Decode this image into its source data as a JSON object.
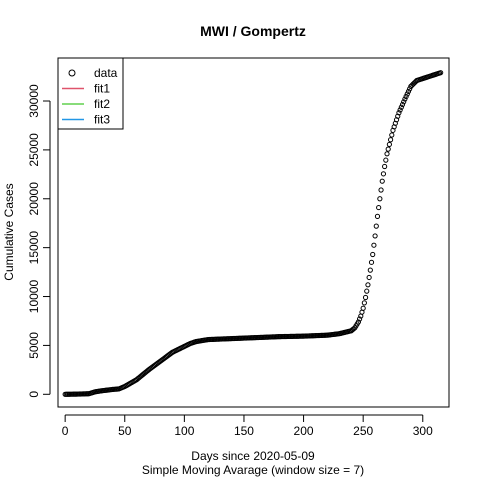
{
  "chart_data": {
    "type": "scatter",
    "title": "MWI / Gompertz",
    "xlabel": "Days since 2020-05-09",
    "xlabel2": "Simple Moving Avarage (window size = 7)",
    "ylabel": "Cumulative Cases",
    "xlim": [
      -6,
      322
    ],
    "ylim": [
      -1300,
      34400
    ],
    "xticks": [
      0,
      50,
      100,
      150,
      200,
      250,
      300
    ],
    "yticks": [
      0,
      5000,
      10000,
      15000,
      20000,
      25000,
      30000
    ],
    "grid": false,
    "legend_position": "top-left",
    "legend": [
      {
        "label": "data",
        "kind": "point",
        "color": "#000000"
      },
      {
        "label": "fit1",
        "kind": "line",
        "color": "#DF536B"
      },
      {
        "label": "fit2",
        "kind": "line",
        "color": "#61D04F"
      },
      {
        "label": "fit3",
        "kind": "line",
        "color": "#2297E6"
      }
    ],
    "series": [
      {
        "name": "data",
        "marker": "open-circle",
        "anchors_x": [
          0,
          10,
          20,
          25,
          30,
          40,
          45,
          50,
          60,
          70,
          80,
          90,
          100,
          105,
          110,
          120,
          140,
          160,
          180,
          200,
          220,
          230,
          240,
          243,
          246,
          248,
          250,
          252,
          254,
          256,
          258,
          260,
          262,
          264,
          266,
          268,
          270,
          275,
          280,
          285,
          290,
          295,
          300,
          305,
          310,
          315
        ],
        "anchors_y": [
          0,
          20,
          60,
          250,
          350,
          500,
          550,
          800,
          1500,
          2500,
          3400,
          4300,
          4900,
          5200,
          5400,
          5600,
          5700,
          5800,
          5900,
          5950,
          6050,
          6200,
          6500,
          6800,
          7400,
          8000,
          8800,
          9900,
          11200,
          12700,
          14300,
          16200,
          18200,
          20000,
          21800,
          23300,
          24600,
          27000,
          28800,
          30200,
          31500,
          32100,
          32300,
          32500,
          32700,
          32900
        ],
        "x_range": [
          0,
          315
        ]
      }
    ]
  }
}
